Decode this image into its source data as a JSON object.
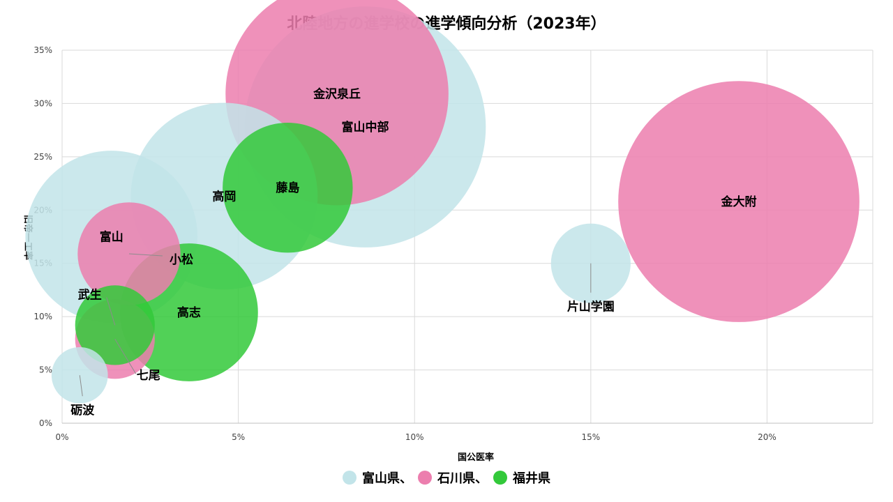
{
  "title": "北陸地方の進学校の進学傾向分析（2023年）",
  "colors": {
    "富山県": "#c2e4e9",
    "石川県": "#ec7eae",
    "福井県": "#33c93a"
  },
  "legend": [
    {
      "label": "富山県、",
      "series": "富山県"
    },
    {
      "label": "石川県、",
      "series": "石川県"
    },
    {
      "label": "福井県",
      "series": "福井県"
    }
  ],
  "chart_data": {
    "type": "scatter",
    "variant": "bubble",
    "title": "北陸地方の進学校の進学傾向分析（2023年）",
    "xlabel": "国公医率",
    "ylabel": "旧帝一工率",
    "xlim": [
      0,
      23
    ],
    "ylim": [
      0,
      35
    ],
    "x_ticks": [
      "0%",
      "5%",
      "10%",
      "15%",
      "20%"
    ],
    "y_ticks": [
      "0%",
      "5%",
      "10%",
      "15%",
      "20%",
      "25%",
      "30%",
      "35%"
    ],
    "grid": true,
    "legend_position": "bottom",
    "series": [
      {
        "name": "富山県",
        "points": [
          {
            "label": "富山中部",
            "x": 8.6,
            "y": 27.8,
            "size": 5.5
          },
          {
            "label": "高岡",
            "x": 4.6,
            "y": 21.3,
            "size": 3.3
          },
          {
            "label": "富山",
            "x": 1.4,
            "y": 17.5,
            "size": 2.8
          },
          {
            "label": "片山学園",
            "x": 15.0,
            "y": 15.0,
            "size": 0.6
          },
          {
            "label": "砺波",
            "x": 0.5,
            "y": 4.5,
            "size": 0.3
          }
        ]
      },
      {
        "name": "石川県",
        "points": [
          {
            "label": "金沢泉丘",
            "x": 7.8,
            "y": 30.9,
            "size": 4.7
          },
          {
            "label": "金大附",
            "x": 19.2,
            "y": 20.8,
            "size": 5.5
          },
          {
            "label": "小松",
            "x": 1.9,
            "y": 15.9,
            "size": 1.0
          },
          {
            "label": "七尾",
            "x": 1.5,
            "y": 7.9,
            "size": 0.6
          }
        ]
      },
      {
        "name": "福井県",
        "points": [
          {
            "label": "藤島",
            "x": 6.4,
            "y": 22.1,
            "size": 1.6
          },
          {
            "label": "高志",
            "x": 3.6,
            "y": 10.4,
            "size": 1.8
          },
          {
            "label": "武生",
            "x": 1.5,
            "y": 9.2,
            "size": 0.6
          }
        ]
      }
    ]
  }
}
